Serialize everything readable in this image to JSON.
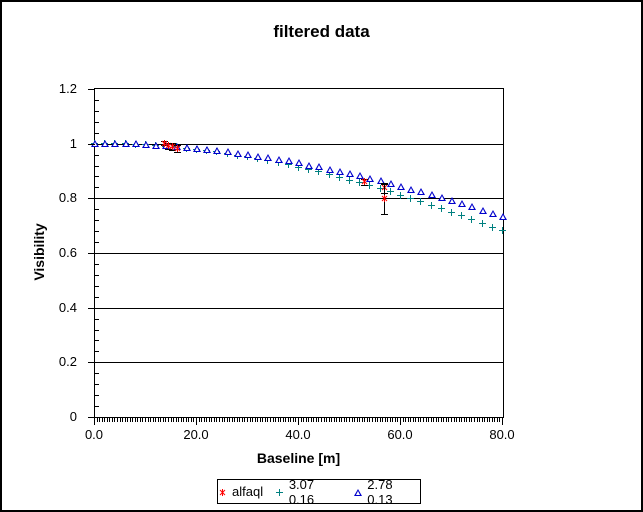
{
  "chart_data": {
    "type": "scatter",
    "title": "filtered data",
    "xlabel": "Baseline [m]",
    "ylabel": "Visibility",
    "xlim": [
      0,
      80
    ],
    "ylim": [
      0,
      1.2
    ],
    "x_ticks": [
      0,
      20,
      40,
      60,
      80
    ],
    "x_tick_labels": [
      "0.0",
      "20.0",
      "40.0",
      "60.0",
      "80.0"
    ],
    "x_minor_unit": 0.5,
    "y_ticks": [
      0,
      0.2,
      0.4,
      0.6,
      0.8,
      1,
      1.2
    ],
    "y_tick_labels": [
      "0",
      "0.2",
      "0.4",
      "0.6",
      "0.8",
      "1",
      "1.2"
    ],
    "y_minor_unit": 0.04,
    "grid": "horizontal-major",
    "legend_position": "bottom",
    "frame_color": "#000000",
    "background_color": "#ffffff",
    "series": [
      {
        "name": "alfaql",
        "marker": "star",
        "color": "#ff0000",
        "error_bar_color": "#000000",
        "points": [
          {
            "x": 13.7,
            "y": 0.998,
            "yerr": 0.01
          },
          {
            "x": 14.6,
            "y": 0.992,
            "yerr": 0.012
          },
          {
            "x": 15.3,
            "y": 0.987,
            "yerr": 0.014
          },
          {
            "x": 16.2,
            "y": 0.98,
            "yerr": 0.014
          },
          {
            "x": 52.9,
            "y": 0.859,
            "yerr": 0.013
          },
          {
            "x": 56.9,
            "y": 0.836,
            "yerr": 0.02
          },
          {
            "x": 56.9,
            "y": 0.798,
            "yerr": 0.056
          }
        ]
      },
      {
        "name": "3.07 0.16",
        "marker": "plus",
        "color": "#008080",
        "x": [
          0,
          2,
          4,
          6,
          8,
          10,
          12,
          14,
          16,
          18,
          20,
          22,
          24,
          26,
          28,
          30,
          32,
          34,
          36,
          38,
          40,
          42,
          44,
          46,
          48,
          50,
          52,
          54,
          56,
          58,
          60,
          62,
          64,
          66,
          68,
          70,
          72,
          74,
          76,
          78,
          80
        ],
        "y": [
          1.0,
          1.0,
          0.999,
          0.998,
          0.996,
          0.994,
          0.992,
          0.989,
          0.986,
          0.982,
          0.978,
          0.973,
          0.968,
          0.962,
          0.956,
          0.95,
          0.943,
          0.936,
          0.929,
          0.921,
          0.912,
          0.904,
          0.895,
          0.885,
          0.875,
          0.865,
          0.855,
          0.844,
          0.833,
          0.822,
          0.81,
          0.798,
          0.786,
          0.773,
          0.76,
          0.748,
          0.734,
          0.721,
          0.707,
          0.693,
          0.68
        ]
      },
      {
        "name": "2.78 0.13",
        "marker": "triangle-open",
        "color": "#0000cc",
        "x": [
          0,
          2,
          4,
          6,
          8,
          10,
          12,
          14,
          16,
          18,
          20,
          22,
          24,
          26,
          28,
          30,
          32,
          34,
          36,
          38,
          40,
          42,
          44,
          46,
          48,
          50,
          52,
          54,
          56,
          58,
          60,
          62,
          64,
          66,
          68,
          70,
          72,
          74,
          76,
          78,
          80
        ],
        "y": [
          1.0,
          1.0,
          0.999,
          0.998,
          0.997,
          0.995,
          0.993,
          0.991,
          0.988,
          0.985,
          0.982,
          0.978,
          0.974,
          0.969,
          0.964,
          0.959,
          0.953,
          0.947,
          0.941,
          0.935,
          0.928,
          0.92,
          0.913,
          0.905,
          0.897,
          0.889,
          0.88,
          0.871,
          0.862,
          0.852,
          0.842,
          0.832,
          0.822,
          0.811,
          0.8,
          0.79,
          0.778,
          0.767,
          0.755,
          0.743,
          0.731
        ]
      }
    ]
  }
}
